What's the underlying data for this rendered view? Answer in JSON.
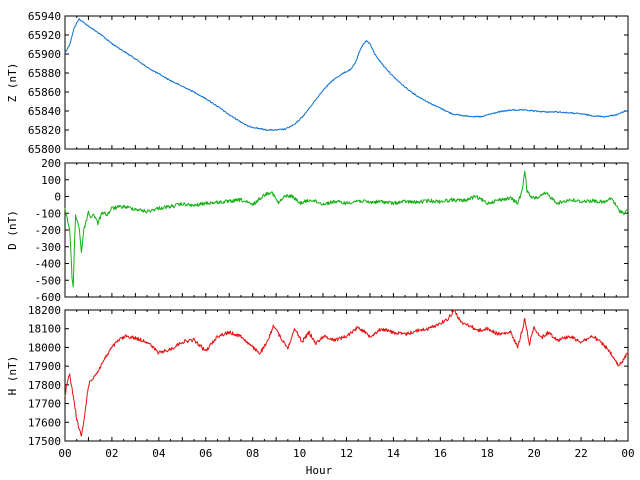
{
  "chart_data": [
    {
      "type": "line",
      "ylabel": "Z (nT)",
      "ylim": [
        65800,
        65940
      ],
      "yticks": [
        65800,
        65820,
        65840,
        65860,
        65880,
        65900,
        65920,
        65940
      ],
      "xlim": [
        0,
        24
      ],
      "series": [
        {
          "color": "#0a6fd6",
          "x": [
            0,
            0.2,
            0.4,
            0.6,
            0.8,
            1.2,
            1.6,
            2,
            2.5,
            3,
            3.5,
            4,
            4.5,
            5,
            5.5,
            6,
            6.5,
            7,
            7.4,
            7.8,
            8.2,
            8.6,
            9,
            9.4,
            9.8,
            10.2,
            10.6,
            11,
            11.4,
            11.8,
            12.2,
            12.4,
            12.55,
            12.7,
            12.85,
            13,
            13.2,
            13.5,
            14,
            14.5,
            15,
            15.5,
            16,
            16.5,
            17,
            17.5,
            17.8,
            18,
            18.5,
            19,
            19.5,
            20,
            20.5,
            21,
            21.5,
            22,
            22.5,
            23,
            23.5,
            24
          ],
          "y": [
            65901,
            65910,
            65928,
            65937,
            65933,
            65926,
            65919,
            65911,
            65903,
            65895,
            65886,
            65879,
            65872,
            65866,
            65860,
            65853,
            65845,
            65836,
            65830,
            65824,
            65822,
            65820,
            65820,
            65821,
            65826,
            65836,
            65849,
            65862,
            65872,
            65879,
            65884,
            65892,
            65902,
            65910,
            65914,
            65911,
            65900,
            65890,
            65876,
            65865,
            65856,
            65849,
            65843,
            65837,
            65835,
            65834,
            65834,
            65836,
            65839,
            65841,
            65841,
            65840,
            65839,
            65839,
            65838,
            65837,
            65835,
            65834,
            65836,
            65841
          ]
        }
      ]
    },
    {
      "type": "line",
      "ylabel": "D (nT)",
      "ylim": [
        -600,
        200
      ],
      "yticks": [
        -600,
        -500,
        -400,
        -300,
        -200,
        -100,
        0,
        100,
        200
      ],
      "xlim": [
        0,
        24
      ],
      "series": [
        {
          "color": "#12b012",
          "x": [
            0,
            0.1,
            0.2,
            0.3,
            0.35,
            0.4,
            0.45,
            0.5,
            0.6,
            0.7,
            0.8,
            0.9,
            1.0,
            1.1,
            1.2,
            1.4,
            1.6,
            1.8,
            2.0,
            2.5,
            3,
            3.5,
            4,
            4.5,
            5,
            5.5,
            6,
            6.5,
            7,
            7.5,
            8,
            8.5,
            8.8,
            9.1,
            9.4,
            9.7,
            10,
            10.5,
            11,
            11.5,
            12,
            12.5,
            13,
            13.5,
            14,
            14.5,
            15,
            15.5,
            16,
            16.5,
            17,
            17.5,
            18,
            18.5,
            19,
            19.3,
            19.5,
            19.6,
            19.7,
            19.9,
            20.2,
            20.5,
            21,
            21.5,
            22,
            22.5,
            23,
            23.3,
            23.6,
            23.8,
            24
          ],
          "y": [
            -80,
            -130,
            -200,
            -480,
            -550,
            -300,
            -100,
            -140,
            -180,
            -330,
            -200,
            -150,
            -90,
            -130,
            -100,
            -160,
            -90,
            -110,
            -70,
            -60,
            -75,
            -90,
            -70,
            -60,
            -45,
            -55,
            -40,
            -35,
            -30,
            -20,
            -50,
            10,
            30,
            -40,
            5,
            0,
            -40,
            -20,
            -45,
            -30,
            -40,
            -25,
            -35,
            -30,
            -40,
            -30,
            -35,
            -25,
            -30,
            -20,
            -25,
            0,
            -40,
            -20,
            -10,
            -40,
            40,
            160,
            30,
            -10,
            -5,
            20,
            -40,
            -20,
            -30,
            -25,
            -35,
            -10,
            -80,
            -100,
            -80
          ]
        }
      ]
    },
    {
      "type": "line",
      "ylabel": "H (nT)",
      "xlabel": "Hour",
      "ylim": [
        17500,
        18200
      ],
      "yticks": [
        17500,
        17600,
        17700,
        17800,
        17900,
        18000,
        18100,
        18200
      ],
      "xlim": [
        0,
        24
      ],
      "xticks": [
        "00",
        "02",
        "04",
        "06",
        "08",
        "10",
        "12",
        "14",
        "16",
        "18",
        "20",
        "22",
        "00"
      ],
      "series": [
        {
          "color": "#e81010",
          "x": [
            0,
            0.1,
            0.2,
            0.3,
            0.4,
            0.5,
            0.6,
            0.7,
            0.8,
            0.9,
            1.0,
            1.2,
            1.4,
            1.6,
            1.8,
            2.0,
            2.3,
            2.6,
            3,
            3.5,
            4,
            4.5,
            5,
            5.5,
            6,
            6.5,
            7,
            7.5,
            8,
            8.3,
            8.6,
            8.9,
            9.2,
            9.5,
            9.8,
            10.1,
            10.4,
            10.7,
            11,
            11.5,
            12,
            12.5,
            13,
            13.5,
            14,
            14.5,
            15,
            15.5,
            16,
            16.3,
            16.6,
            16.9,
            17.2,
            17.6,
            18,
            18.5,
            19,
            19.3,
            19.6,
            19.8,
            20,
            20.3,
            20.6,
            21,
            21.5,
            22,
            22.5,
            23,
            23.3,
            23.6,
            23.8,
            24
          ],
          "y": [
            17740,
            17820,
            17850,
            17780,
            17700,
            17620,
            17560,
            17530,
            17600,
            17700,
            17800,
            17840,
            17870,
            17920,
            17960,
            18000,
            18040,
            18060,
            18050,
            18030,
            17970,
            17990,
            18030,
            18040,
            17980,
            18060,
            18080,
            18060,
            18000,
            17970,
            18020,
            18120,
            18050,
            18000,
            18100,
            18030,
            18080,
            18020,
            18060,
            18040,
            18060,
            18110,
            18060,
            18100,
            18080,
            18070,
            18090,
            18100,
            18130,
            18150,
            18200,
            18130,
            18120,
            18090,
            18100,
            18070,
            18080,
            18000,
            18150,
            18020,
            18110,
            18050,
            18080,
            18040,
            18060,
            18030,
            18060,
            18010,
            17960,
            17900,
            17930,
            17980
          ]
        }
      ]
    }
  ]
}
